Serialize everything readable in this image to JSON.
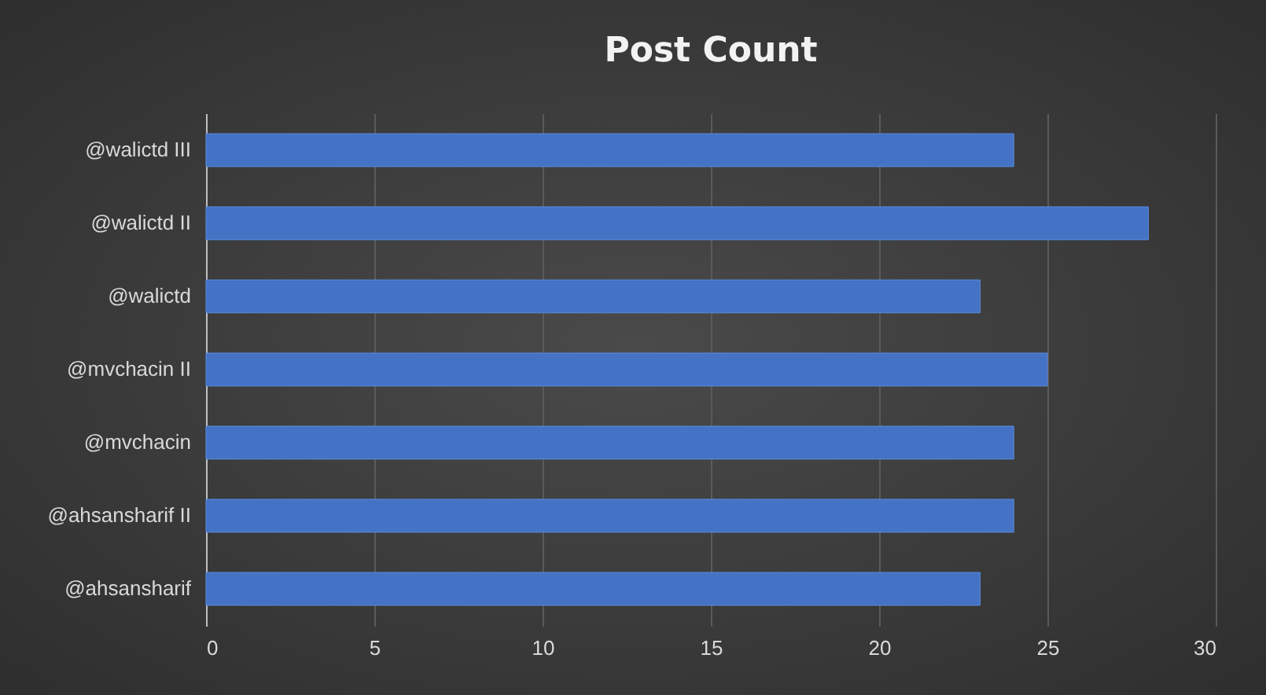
{
  "chart_data": {
    "type": "bar",
    "orientation": "horizontal",
    "title": "Post Count",
    "categories": [
      "@walictd III",
      "@walictd II",
      "@walictd",
      "@mvchacin II",
      "@mvchacin",
      "@ahsansharif II",
      "@ahsansharif"
    ],
    "values": [
      24,
      28,
      23,
      25,
      24,
      24,
      23
    ],
    "color": "#4472c4",
    "xlim": [
      0,
      30
    ],
    "xticks": [
      0,
      5,
      10,
      15,
      20,
      25,
      30
    ],
    "grid": "x"
  }
}
